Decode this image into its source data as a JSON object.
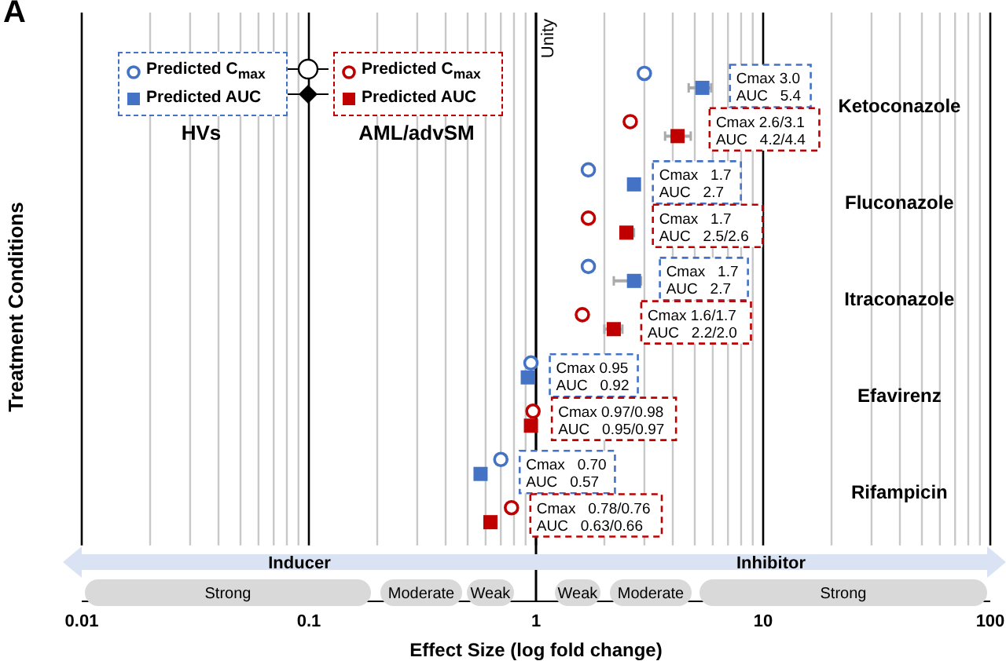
{
  "chart_data": {
    "type": "scatter",
    "title": "A",
    "xlabel": "Effect Size (log fold change)",
    "ylabel": "Treatment Conditions",
    "orientation": "horizontal",
    "log": "x",
    "grid": "x",
    "legend": "top left",
    "categories": [
      "Ketoconazole",
      "Fluconazole",
      "Itraconazole",
      "Efavirenz",
      "Rifampicin"
    ],
    "xlim": [
      0.01,
      100
    ],
    "xticks": [
      0.01,
      {
        "value": 0.02,
        "label": null
      },
      {
        "value": 0.03,
        "label": null
      },
      {
        "value": 0.04,
        "label": null
      },
      {
        "value": 0.05,
        "label": null
      },
      {
        "value": 0.06,
        "label": null
      },
      {
        "value": 0.07,
        "label": null
      },
      {
        "value": 0.08,
        "label": null
      },
      {
        "value": 0.09,
        "label": null
      },
      0.1,
      {
        "value": 0.2,
        "label": null
      },
      {
        "value": 0.3,
        "label": null
      },
      {
        "value": 0.4,
        "label": null
      },
      {
        "value": 0.5,
        "label": null
      },
      {
        "value": 0.6,
        "label": null
      },
      {
        "value": 0.7,
        "label": null
      },
      {
        "value": 0.8,
        "label": null
      },
      {
        "value": 0.9,
        "label": null
      },
      1,
      {
        "value": 2,
        "label": null
      },
      {
        "value": 3,
        "label": null
      },
      {
        "value": 4,
        "label": null
      },
      {
        "value": 5,
        "label": null
      },
      {
        "value": 6,
        "label": null
      },
      {
        "value": 7,
        "label": null
      },
      {
        "value": 8,
        "label": null
      },
      {
        "value": 9,
        "label": null
      },
      10,
      {
        "value": 20,
        "label": null
      },
      {
        "value": 30,
        "label": null
      },
      {
        "value": 40,
        "label": null
      },
      {
        "value": 50,
        "label": null
      },
      {
        "value": 60,
        "label": null
      },
      {
        "value": 70,
        "label": null
      },
      {
        "value": 80,
        "label": null
      },
      {
        "value": 90,
        "label": null
      },
      100
    ],
    "series": [
      {
        "name": "Predicted C$_{max}$",
        "color": "#4472c4",
        "marker": "circle",
        "values": [
          3.0,
          1.7,
          1.7,
          0.95,
          0.7
        ]
      },
      {
        "name": "Predicted AUC",
        "color": "#4472c4",
        "marker": "square",
        "values": [
          5.4,
          2.7,
          2.7,
          0.92,
          0.57
        ],
        "errors": [
          [
            4.7,
            5.9
          ],
          null,
          [
            2.2,
            2.9
          ],
          null,
          null
        ]
      },
      {
        "name": "Predicted C$_{max}$",
        "color": "#c00000",
        "marker": "circle",
        "values": [
          2.6,
          1.7,
          1.6,
          0.97,
          0.78
        ]
      },
      {
        "name": "Predicted AUC",
        "color": "#c00000",
        "marker": "square",
        "values": [
          4.2,
          2.5,
          2.2,
          0.95,
          0.63
        ],
        "errors": [
          [
            3.7,
            4.8
          ],
          [
            2.4,
            2.7
          ],
          [
            2.0,
            2.4
          ],
          null,
          null
        ]
      }
    ],
    "ref_lines": [
      {
        "axis": "x",
        "value": 1,
        "label": "Unity",
        "color": "#000000"
      }
    ],
    "annotations": [
      "HVs",
      "AML/advSM",
      "Cmax 3.0\nAUC   5.4",
      "Cmax 2.6/3.1\nAUC   4.2/4.4",
      "Cmax   1.7\nAUC   2.7",
      "Cmax   1.7\nAUC   2.5/2.6",
      "Cmax   1.7\nAUC   2.7",
      "Cmax 1.6/1.7\nAUC   2.2/2.0",
      "Cmax 0.95\nAUC   0.92",
      "Cmax 0.97/0.98\nAUC   0.95/0.97",
      "Cmax   0.70\nAUC   0.57",
      "Cmax   0.78/0.76\nAUC   0.63/0.66",
      "Inducer",
      "Inhibitor",
      "Strong",
      "Moderate",
      "Weak",
      "Weak",
      "Moderate",
      "Strong"
    ]
  }
}
